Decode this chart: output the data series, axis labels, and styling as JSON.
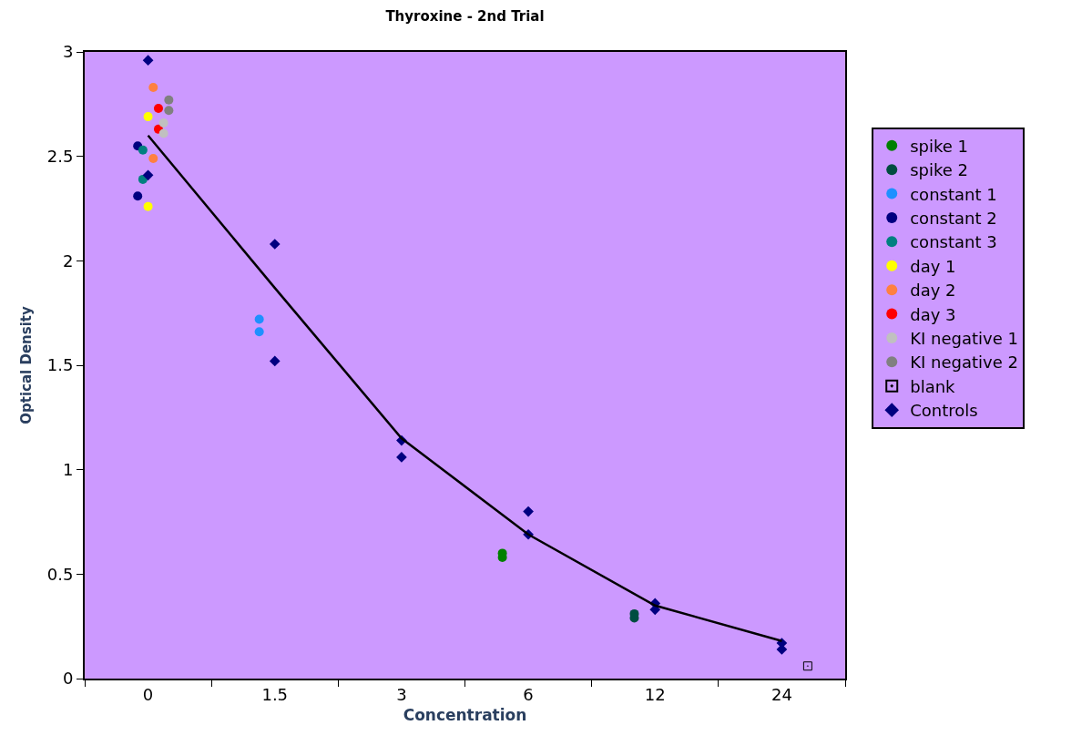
{
  "chart_data": {
    "type": "scatter",
    "title": "Thyroxine - 2nd Trial",
    "xlabel": "Concentration",
    "ylabel": "Optical Density",
    "categories": [
      "0",
      "1.5",
      "3",
      "6",
      "12",
      "24"
    ],
    "ylim": [
      0,
      3
    ],
    "yticks": [
      0,
      0.5,
      1,
      1.5,
      2,
      2.5,
      3
    ],
    "grid": false,
    "legend": "right",
    "marker": "circle",
    "series": [
      {
        "name": "spike 1",
        "color": "#008000",
        "x": [
          "6",
          "6"
        ],
        "values": [
          0.6,
          0.58
        ]
      },
      {
        "name": "spike 2",
        "color": "#004d40",
        "x": [
          "12",
          "12"
        ],
        "values": [
          0.31,
          0.29
        ]
      },
      {
        "name": "constant 1",
        "color": "#1e90ff",
        "x": [
          "1.5",
          "1.5"
        ],
        "values": [
          1.72,
          1.66
        ]
      },
      {
        "name": "constant 2",
        "color": "#000080",
        "x": [
          "0",
          "0"
        ],
        "values": [
          2.55,
          2.31
        ]
      },
      {
        "name": "constant 3",
        "color": "#008080",
        "x": [
          "0",
          "0"
        ],
        "values": [
          2.53,
          2.39
        ]
      },
      {
        "name": "day 1",
        "color": "#ffff00",
        "x": [
          "0",
          "0"
        ],
        "values": [
          2.69,
          2.26
        ]
      },
      {
        "name": "day 2",
        "color": "#ff8040",
        "x": [
          "0",
          "0"
        ],
        "values": [
          2.83,
          2.49
        ]
      },
      {
        "name": "day 3",
        "color": "#ff0000",
        "x": [
          "0",
          "0"
        ],
        "values": [
          2.73,
          2.63
        ]
      },
      {
        "name": "KI negative 1",
        "color": "#c0c0c0",
        "x": [
          "0",
          "0"
        ],
        "values": [
          2.66,
          2.61
        ]
      },
      {
        "name": "KI negative 2",
        "color": "#808080",
        "x": [
          "0",
          "0"
        ],
        "values": [
          2.77,
          2.72
        ]
      },
      {
        "name": "blank",
        "color": "#000000",
        "marker": "square",
        "x": [
          "24"
        ],
        "values": [
          0.06
        ]
      },
      {
        "name": "Controls",
        "color": "#000080",
        "marker": "diamond",
        "x": [
          "0",
          "0",
          "1.5",
          "1.5",
          "3",
          "3",
          "6",
          "6",
          "12",
          "12",
          "24",
          "24"
        ],
        "values": [
          2.96,
          2.41,
          2.08,
          1.52,
          1.14,
          1.06,
          0.8,
          0.69,
          0.36,
          0.33,
          0.17,
          0.14
        ]
      },
      {
        "type": "line",
        "color": "#000000",
        "marker": "none",
        "x": [
          "0",
          "1.5",
          "3",
          "6",
          "12",
          "24"
        ],
        "values": [
          2.6,
          1.87,
          1.15,
          0.69,
          0.35,
          0.18
        ]
      }
    ]
  }
}
